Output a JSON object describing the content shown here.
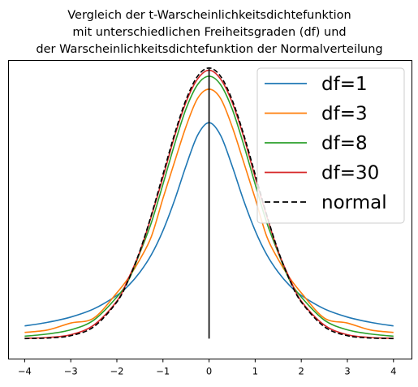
{
  "chart_data": {
    "type": "line",
    "title": [
      "Vergleich der t-Warscheinlichkeitsdichtefunktion",
      "mit unterschiedlichen Freiheitsgraden (df) und",
      "der Warscheinlichkeitsdichtefunktion der Normalverteilung"
    ],
    "xlabel": "",
    "ylabel": "",
    "xlim": [
      -4.35,
      4.4
    ],
    "ylim": [
      -0.03,
      0.41
    ],
    "xticks": [
      -4,
      -3,
      -2,
      -1,
      0,
      1,
      2,
      3,
      4
    ],
    "xtick_labels": [
      "−4",
      "−3",
      "−2",
      "−1",
      "0",
      "1",
      "2",
      "3",
      "4"
    ],
    "yticks_visible": false,
    "grid": false,
    "legend_position": "top-right",
    "series": [
      {
        "name": "df=1",
        "color": "#1f77b4",
        "style": "solid",
        "x": [
          -4,
          -3.5,
          -3,
          -2.5,
          -2,
          -1.75,
          -1.5,
          -1.25,
          -1,
          -0.75,
          -0.5,
          -0.25,
          0,
          0.25,
          0.5,
          0.75,
          1,
          1.25,
          1.5,
          1.75,
          2,
          2.5,
          3,
          3.5,
          4
        ],
        "y": [
          0.0187,
          0.0241,
          0.0318,
          0.0439,
          0.0637,
          0.0781,
          0.0979,
          0.1239,
          0.1592,
          0.2037,
          0.2546,
          0.2996,
          0.3183,
          0.2996,
          0.2546,
          0.2037,
          0.1592,
          0.1239,
          0.0979,
          0.0781,
          0.0637,
          0.0439,
          0.0318,
          0.0241,
          0.0187
        ]
      },
      {
        "name": "df=3",
        "color": "#ff7f0e",
        "style": "solid",
        "x": [
          -4,
          -3.5,
          -3,
          -2.5,
          -2,
          -1.75,
          -1.5,
          -1.25,
          -1,
          -0.75,
          -0.5,
          -0.25,
          0,
          0.25,
          0.5,
          0.75,
          1,
          1.25,
          1.5,
          1.75,
          2,
          2.5,
          3,
          3.5,
          4
        ],
        "y": [
          0.0092,
          0.0128,
          0.023,
          0.0303,
          0.0675,
          0.0893,
          0.1168,
          0.1508,
          0.2067,
          0.2602,
          0.3125,
          0.3539,
          0.3676,
          0.3539,
          0.3125,
          0.2602,
          0.2067,
          0.1508,
          0.1168,
          0.0893,
          0.0675,
          0.0303,
          0.023,
          0.0128,
          0.0092
        ]
      },
      {
        "name": "df=8",
        "color": "#2ca02c",
        "style": "solid",
        "x": [
          -4,
          -3.5,
          -3,
          -2.5,
          -2,
          -1.75,
          -1.5,
          -1.25,
          -1,
          -0.75,
          -0.5,
          -0.25,
          0,
          0.25,
          0.5,
          0.75,
          1,
          1.25,
          1.5,
          1.75,
          2,
          2.5,
          3,
          3.5,
          4
        ],
        "y": [
          0.0036,
          0.0069,
          0.013,
          0.0273,
          0.0613,
          0.0858,
          0.1266,
          0.1713,
          0.2276,
          0.286,
          0.3386,
          0.3743,
          0.3867,
          0.3743,
          0.3386,
          0.286,
          0.2276,
          0.1713,
          0.1266,
          0.0858,
          0.0613,
          0.0273,
          0.013,
          0.0069,
          0.0036
        ]
      },
      {
        "name": "df=30",
        "color": "#d62728",
        "style": "solid",
        "x": [
          -4,
          -3.5,
          -3,
          -2.5,
          -2,
          -1.75,
          -1.5,
          -1.25,
          -1,
          -0.75,
          -0.5,
          -0.25,
          0,
          0.25,
          0.5,
          0.75,
          1,
          1.25,
          1.5,
          1.75,
          2,
          2.5,
          3,
          3.5,
          4
        ],
        "y": [
          0.0006,
          0.0017,
          0.0058,
          0.02,
          0.0553,
          0.0886,
          0.1282,
          0.1808,
          0.2379,
          0.2977,
          0.3485,
          0.3826,
          0.3956,
          0.3826,
          0.3485,
          0.2977,
          0.2379,
          0.1808,
          0.1282,
          0.0886,
          0.0553,
          0.02,
          0.0058,
          0.0017,
          0.0006
        ]
      },
      {
        "name": "normal",
        "color": "#000000",
        "style": "dashed",
        "x": [
          -4,
          -3.5,
          -3,
          -2.5,
          -2,
          -1.75,
          -1.5,
          -1.25,
          -1,
          -0.75,
          -0.5,
          -0.25,
          0,
          0.25,
          0.5,
          0.75,
          1,
          1.25,
          1.5,
          1.75,
          2,
          2.5,
          3,
          3.5,
          4
        ],
        "y": [
          0.0001,
          0.0009,
          0.0044,
          0.0175,
          0.054,
          0.0863,
          0.1295,
          0.1826,
          0.242,
          0.3011,
          0.3521,
          0.3867,
          0.3989,
          0.3867,
          0.3521,
          0.3011,
          0.242,
          0.1826,
          0.1295,
          0.0863,
          0.054,
          0.0175,
          0.0044,
          0.0009,
          0.0001
        ]
      }
    ],
    "vertical_line": {
      "x": 0,
      "y_from": 0,
      "y_to": 0.3989,
      "color": "#000000"
    }
  }
}
